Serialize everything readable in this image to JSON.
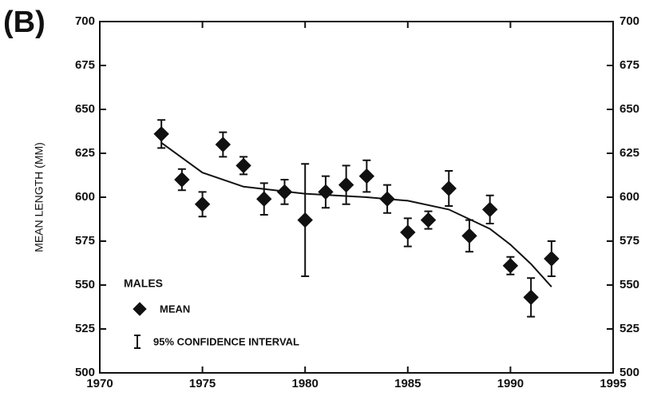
{
  "chart_data": {
    "type": "scatter",
    "title": "(B)",
    "ylabel": "MEAN LENGTH (MM)",
    "legend_title": "MALES",
    "series": [
      {
        "name": "MEAN",
        "color": "#111111",
        "x": [
          1973,
          1974,
          1975,
          1976,
          1977,
          1978,
          1979,
          1980,
          1981,
          1982,
          1983,
          1984,
          1985,
          1986,
          1987,
          1988,
          1989,
          1990,
          1991,
          1992
        ],
        "values": [
          636,
          610,
          596,
          630,
          618,
          599,
          603,
          587,
          603,
          607,
          612,
          599,
          580,
          587,
          605,
          578,
          593,
          561,
          543,
          565
        ],
        "errors": [
          8,
          6,
          7,
          7,
          5,
          9,
          7,
          32,
          9,
          11,
          9,
          8,
          8,
          5,
          10,
          9,
          8,
          5,
          11,
          10
        ],
        "error_name": "95% CONFIDENCE INTERVAL"
      }
    ],
    "fit": {
      "x": [
        1973,
        1975,
        1977,
        1980,
        1983,
        1985,
        1987,
        1989,
        1990,
        1991,
        1992
      ],
      "values": [
        631,
        614,
        606,
        602,
        600,
        598,
        593,
        582,
        573,
        562,
        549
      ]
    },
    "xlim": [
      1970,
      1995
    ],
    "xticks": [
      1970,
      1975,
      1980,
      1985,
      1990,
      1995
    ],
    "ylim": [
      500,
      700
    ],
    "yticks": [
      500,
      525,
      550,
      575,
      600,
      625,
      650,
      675,
      700
    ],
    "y2lim": [
      500,
      700
    ],
    "y2ticks": [
      500,
      525,
      550,
      575,
      600,
      625,
      650,
      675,
      700
    ]
  }
}
